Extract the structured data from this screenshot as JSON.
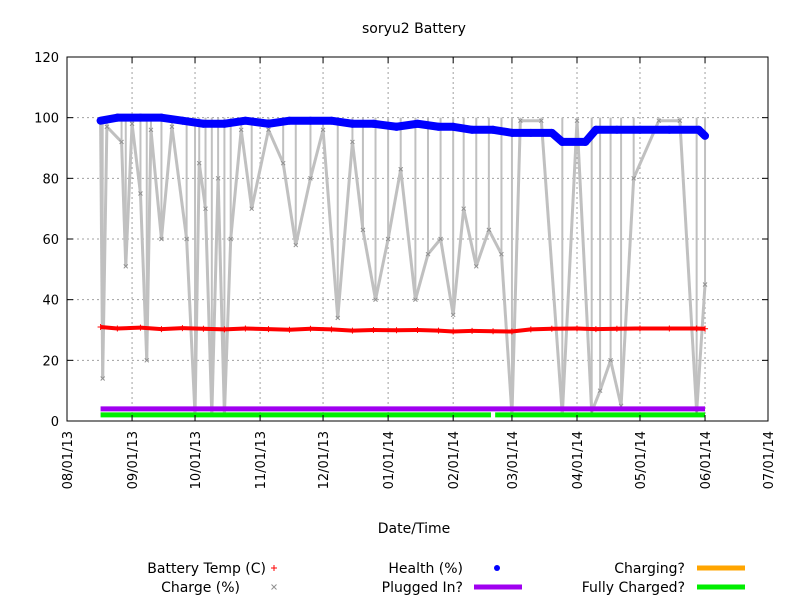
{
  "chart_data": {
    "type": "scatter",
    "title": "soryu2 Battery",
    "xlabel": "Date/Time",
    "ylabel": "",
    "x_ticks": [
      "08/01/13",
      "09/01/13",
      "10/01/13",
      "11/01/13",
      "12/01/13",
      "01/01/14",
      "02/01/14",
      "03/01/14",
      "04/01/14",
      "05/01/14",
      "06/01/14",
      "07/01/14"
    ],
    "xlim": [
      "2013-08-01",
      "2014-07-01"
    ],
    "y_ticks": [
      0,
      20,
      40,
      60,
      80,
      100,
      120
    ],
    "ylim": [
      0,
      120
    ],
    "grid": true,
    "legend_position": "bottom",
    "colors": {
      "battery_temp": "#ff0000",
      "charge": "#c0c0c0",
      "health": "#0000ff",
      "plugged_in": "#a000f0",
      "charging": "#ffa500",
      "fully_charged": "#00ee00"
    },
    "series": [
      {
        "name": "Battery Temp (C)",
        "key": "battery_temp",
        "marker": "+",
        "points": [
          [
            "2013-08-17",
            31
          ],
          [
            "2013-08-25",
            30.5
          ],
          [
            "2013-09-05",
            30.8
          ],
          [
            "2013-09-15",
            30.3
          ],
          [
            "2013-09-25",
            30.6
          ],
          [
            "2013-10-05",
            30.4
          ],
          [
            "2013-10-15",
            30.2
          ],
          [
            "2013-10-25",
            30.5
          ],
          [
            "2013-11-05",
            30.3
          ],
          [
            "2013-11-15",
            30.1
          ],
          [
            "2013-11-25",
            30.4
          ],
          [
            "2013-12-05",
            30.2
          ],
          [
            "2013-12-15",
            29.8
          ],
          [
            "2013-12-25",
            30
          ],
          [
            "2014-01-05",
            29.9
          ],
          [
            "2014-01-15",
            30
          ],
          [
            "2014-01-25",
            29.8
          ],
          [
            "2014-02-01",
            29.5
          ],
          [
            "2014-02-10",
            29.7
          ],
          [
            "2014-02-20",
            29.6
          ],
          [
            "2014-03-01",
            29.5
          ],
          [
            "2014-03-10",
            30.2
          ],
          [
            "2014-03-20",
            30.4
          ],
          [
            "2014-04-01",
            30.5
          ],
          [
            "2014-04-10",
            30.3
          ],
          [
            "2014-04-20",
            30.4
          ],
          [
            "2014-05-01",
            30.5
          ],
          [
            "2014-05-15",
            30.5
          ],
          [
            "2014-05-28",
            30.5
          ],
          [
            "2014-06-01",
            30.4
          ]
        ]
      },
      {
        "name": "Charge (%)",
        "key": "charge",
        "marker": "x",
        "points": [
          [
            "2013-08-17",
            99
          ],
          [
            "2013-08-18",
            14
          ],
          [
            "2013-08-20",
            97
          ],
          [
            "2013-08-27",
            92
          ],
          [
            "2013-08-29",
            51
          ],
          [
            "2013-09-01",
            98
          ],
          [
            "2013-09-05",
            75
          ],
          [
            "2013-09-08",
            20
          ],
          [
            "2013-09-10",
            96
          ],
          [
            "2013-09-15",
            60
          ],
          [
            "2013-09-20",
            97
          ],
          [
            "2013-09-27",
            60
          ],
          [
            "2013-10-01",
            2
          ],
          [
            "2013-10-03",
            85
          ],
          [
            "2013-10-06",
            70
          ],
          [
            "2013-10-09",
            2
          ],
          [
            "2013-10-12",
            80
          ],
          [
            "2013-10-15",
            2
          ],
          [
            "2013-10-18",
            60
          ],
          [
            "2013-10-23",
            96
          ],
          [
            "2013-10-28",
            70
          ],
          [
            "2013-11-05",
            96
          ],
          [
            "2013-11-12",
            85
          ],
          [
            "2013-11-18",
            58
          ],
          [
            "2013-11-25",
            80
          ],
          [
            "2013-12-01",
            96
          ],
          [
            "2013-12-08",
            34
          ],
          [
            "2013-12-15",
            92
          ],
          [
            "2013-12-20",
            63
          ],
          [
            "2013-12-26",
            40
          ],
          [
            "2014-01-01",
            60
          ],
          [
            "2014-01-07",
            83
          ],
          [
            "2014-01-14",
            40
          ],
          [
            "2014-01-20",
            55
          ],
          [
            "2014-01-26",
            60
          ],
          [
            "2014-02-01",
            35
          ],
          [
            "2014-02-06",
            70
          ],
          [
            "2014-02-12",
            51
          ],
          [
            "2014-02-18",
            63
          ],
          [
            "2014-02-24",
            55
          ],
          [
            "2014-03-01",
            2
          ],
          [
            "2014-03-05",
            99
          ],
          [
            "2014-03-15",
            99
          ],
          [
            "2014-03-25",
            2
          ],
          [
            "2014-04-01",
            99
          ],
          [
            "2014-04-08",
            3
          ],
          [
            "2014-04-12",
            10
          ],
          [
            "2014-04-17",
            20
          ],
          [
            "2014-04-22",
            5
          ],
          [
            "2014-04-28",
            80
          ],
          [
            "2014-05-10",
            99
          ],
          [
            "2014-05-20",
            99
          ],
          [
            "2014-05-28",
            3
          ],
          [
            "2014-06-01",
            45
          ]
        ]
      },
      {
        "name": "Health (%)",
        "key": "health",
        "marker": "*",
        "points": [
          [
            "2013-08-17",
            99
          ],
          [
            "2013-08-25",
            100
          ],
          [
            "2013-09-05",
            100
          ],
          [
            "2013-09-15",
            100
          ],
          [
            "2013-09-25",
            99
          ],
          [
            "2013-10-05",
            98
          ],
          [
            "2013-10-15",
            98
          ],
          [
            "2013-10-25",
            99
          ],
          [
            "2013-11-05",
            98
          ],
          [
            "2013-11-15",
            99
          ],
          [
            "2013-11-25",
            99
          ],
          [
            "2013-12-05",
            99
          ],
          [
            "2013-12-15",
            98
          ],
          [
            "2013-12-25",
            98
          ],
          [
            "2014-01-05",
            97
          ],
          [
            "2014-01-15",
            98
          ],
          [
            "2014-01-25",
            97
          ],
          [
            "2014-02-01",
            97
          ],
          [
            "2014-02-10",
            96
          ],
          [
            "2014-02-20",
            96
          ],
          [
            "2014-03-01",
            95
          ],
          [
            "2014-03-10",
            95
          ],
          [
            "2014-03-20",
            95
          ],
          [
            "2014-03-25",
            92
          ],
          [
            "2014-04-05",
            92
          ],
          [
            "2014-04-10",
            96
          ],
          [
            "2014-04-20",
            96
          ],
          [
            "2014-05-01",
            96
          ],
          [
            "2014-05-15",
            96
          ],
          [
            "2014-05-29",
            96
          ],
          [
            "2014-06-01",
            94
          ]
        ]
      },
      {
        "name": "Plugged In?",
        "key": "plugged_in",
        "marker": "line",
        "points": [
          [
            "2013-08-17",
            4
          ],
          [
            "2014-06-01",
            4
          ]
        ]
      },
      {
        "name": "Charging?",
        "key": "charging",
        "marker": "line",
        "points": []
      },
      {
        "name": "Fully Charged?",
        "key": "fully_charged",
        "marker": "line",
        "points": [
          [
            "2013-08-17",
            2
          ],
          [
            "2014-02-19",
            2
          ],
          [
            "2014-02-21",
            2
          ],
          [
            "2014-06-01",
            2
          ]
        ]
      }
    ]
  }
}
